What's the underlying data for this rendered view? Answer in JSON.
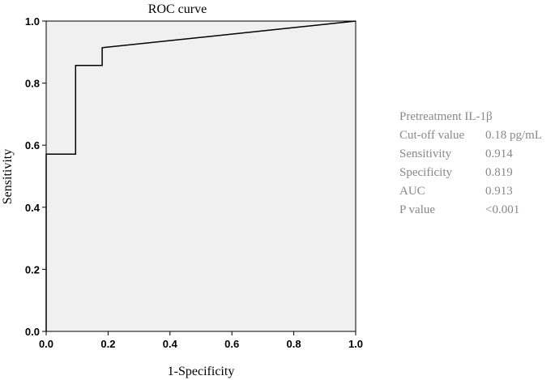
{
  "chart_data": {
    "type": "line",
    "title": "ROC curve",
    "xlabel": "1-Specificity",
    "ylabel": "Sensitivity",
    "xlim": [
      0,
      1
    ],
    "ylim": [
      0,
      1
    ],
    "xticks": [
      "0.0",
      "0.2",
      "0.4",
      "0.6",
      "0.8",
      "1.0"
    ],
    "yticks": [
      "0.0",
      "0.2",
      "0.4",
      "0.6",
      "0.8",
      "1.0"
    ],
    "grid": false,
    "legend": "none",
    "plot_background": "#f0f0f0",
    "line_color": "#000000",
    "series": [
      {
        "x": [
          0,
          0,
          0.095,
          0.095,
          0.181,
          0.181,
          1.0
        ],
        "y": [
          0,
          0.571,
          0.571,
          0.857,
          0.857,
          0.914,
          1.0
        ]
      }
    ]
  },
  "stats": {
    "heading": "Pretreatment IL-1β",
    "rows": [
      {
        "label": "Cut-off value",
        "value": "0.18 pg/mL"
      },
      {
        "label": "Sensitivity",
        "value": "0.914"
      },
      {
        "label": "Specificity",
        "value": "0.819"
      },
      {
        "label": "AUC",
        "value": "0.913"
      },
      {
        "label": "P value",
        "value": "<0.001"
      }
    ]
  }
}
